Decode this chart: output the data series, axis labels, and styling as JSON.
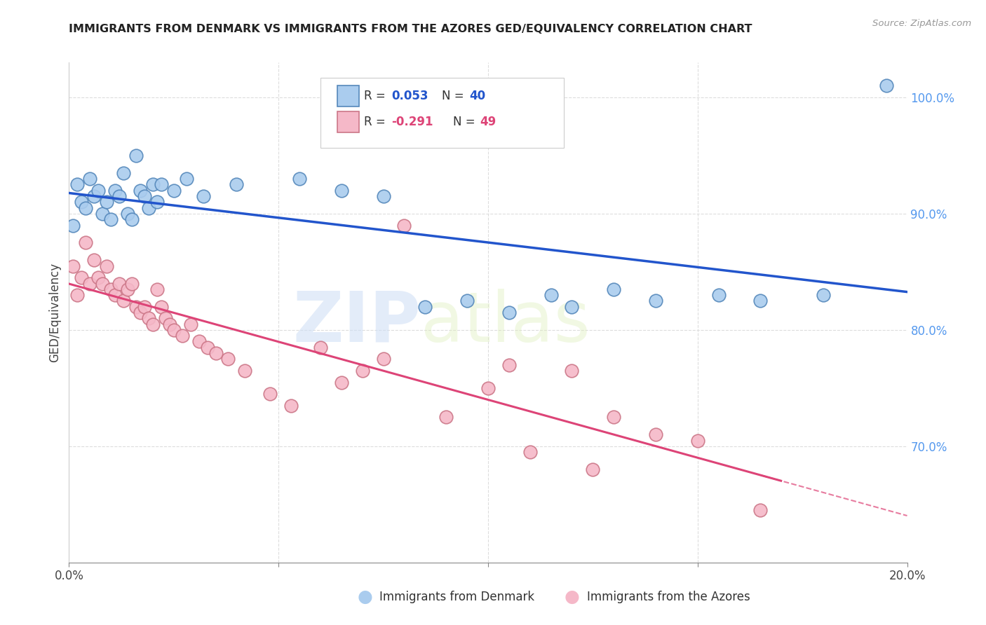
{
  "title": "IMMIGRANTS FROM DENMARK VS IMMIGRANTS FROM THE AZORES GED/EQUIVALENCY CORRELATION CHART",
  "source": "Source: ZipAtlas.com",
  "ylabel": "GED/Equivalency",
  "xlim": [
    0.0,
    20.0
  ],
  "ylim": [
    60.0,
    103.0
  ],
  "yticks_right": [
    70.0,
    80.0,
    90.0,
    100.0
  ],
  "ytick_labels_right": [
    "70.0%",
    "80.0%",
    "90.0%",
    "100.0%"
  ],
  "xticks": [
    0.0,
    5.0,
    10.0,
    15.0,
    20.0
  ],
  "xtick_labels": [
    "0.0%",
    "",
    "",
    "",
    "20.0%"
  ],
  "denmark_color": "#aaccee",
  "denmark_edge": "#5588bb",
  "azores_color": "#f5b8c8",
  "azores_edge": "#cc7788",
  "trend_denmark_color": "#2255cc",
  "trend_azores_color": "#dd4477",
  "watermark_text": "ZIPatlas",
  "denmark_x": [
    0.1,
    0.2,
    0.3,
    0.4,
    0.5,
    0.6,
    0.7,
    0.8,
    0.9,
    1.0,
    1.1,
    1.2,
    1.3,
    1.4,
    1.5,
    1.6,
    1.7,
    1.8,
    1.9,
    2.0,
    2.1,
    2.2,
    2.5,
    2.8,
    3.2,
    4.0,
    5.5,
    6.5,
    7.5,
    8.5,
    9.5,
    10.5,
    11.5,
    12.0,
    13.0,
    14.0,
    15.5,
    16.5,
    18.0,
    19.5
  ],
  "denmark_y": [
    89.0,
    92.5,
    91.0,
    90.5,
    93.0,
    91.5,
    92.0,
    90.0,
    91.0,
    89.5,
    92.0,
    91.5,
    93.5,
    90.0,
    89.5,
    95.0,
    92.0,
    91.5,
    90.5,
    92.5,
    91.0,
    92.5,
    92.0,
    93.0,
    91.5,
    92.5,
    93.0,
    92.0,
    91.5,
    82.0,
    82.5,
    81.5,
    83.0,
    82.0,
    83.5,
    82.5,
    83.0,
    82.5,
    83.0,
    101.0
  ],
  "azores_x": [
    0.1,
    0.2,
    0.3,
    0.4,
    0.5,
    0.6,
    0.7,
    0.8,
    0.9,
    1.0,
    1.1,
    1.2,
    1.3,
    1.4,
    1.5,
    1.6,
    1.7,
    1.8,
    1.9,
    2.0,
    2.1,
    2.2,
    2.3,
    2.4,
    2.5,
    2.7,
    2.9,
    3.1,
    3.3,
    3.5,
    3.8,
    4.2,
    4.8,
    5.3,
    6.0,
    6.5,
    7.0,
    7.5,
    8.0,
    9.0,
    10.0,
    10.5,
    11.0,
    12.0,
    12.5,
    13.0,
    14.0,
    15.0,
    16.5
  ],
  "azores_y": [
    85.5,
    83.0,
    84.5,
    87.5,
    84.0,
    86.0,
    84.5,
    84.0,
    85.5,
    83.5,
    83.0,
    84.0,
    82.5,
    83.5,
    84.0,
    82.0,
    81.5,
    82.0,
    81.0,
    80.5,
    83.5,
    82.0,
    81.0,
    80.5,
    80.0,
    79.5,
    80.5,
    79.0,
    78.5,
    78.0,
    77.5,
    76.5,
    74.5,
    73.5,
    78.5,
    75.5,
    76.5,
    77.5,
    89.0,
    72.5,
    75.0,
    77.0,
    69.5,
    76.5,
    68.0,
    72.5,
    71.0,
    70.5,
    64.5
  ]
}
